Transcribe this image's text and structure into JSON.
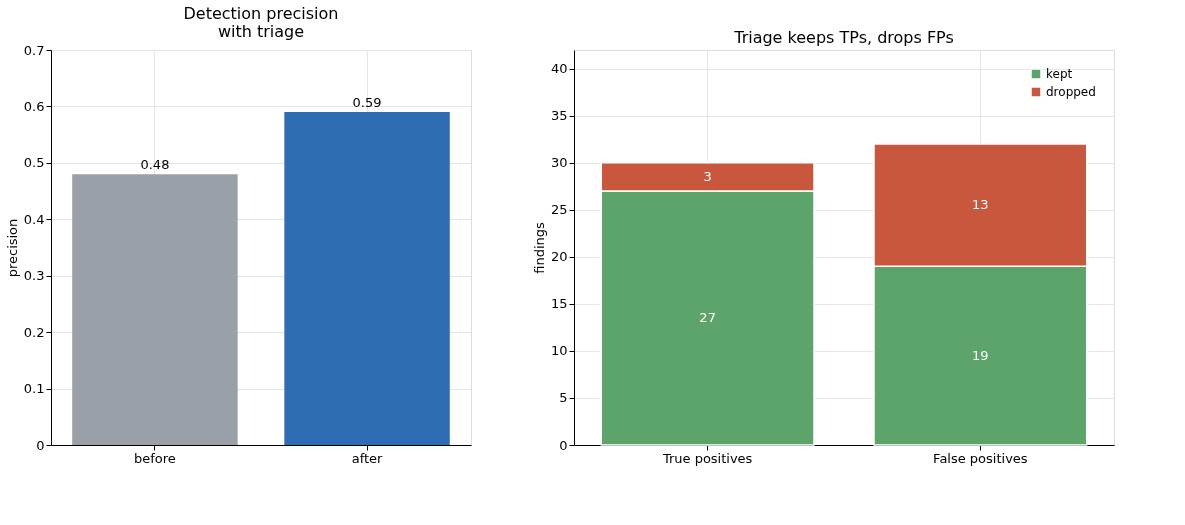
{
  "chart_data": [
    {
      "type": "bar",
      "title": "Detection precision\nwith triage",
      "ylabel": "precision",
      "categories": [
        "before",
        "after"
      ],
      "values": [
        0.48,
        0.59
      ],
      "colors": [
        "#99a0a8",
        "#2e6db4"
      ],
      "ylim": [
        0,
        0.7
      ],
      "yticks": [
        0.0,
        0.1,
        0.2,
        0.3,
        0.4,
        0.5,
        0.6,
        0.7
      ],
      "grid": true,
      "data_labels": true
    },
    {
      "type": "bar",
      "title": "Triage keeps TPs, drops FPs",
      "ylabel": "findings",
      "categories": [
        "True positives",
        "False positives"
      ],
      "stacked": true,
      "series": [
        {
          "name": "kept",
          "color": "#5da46a",
          "values": [
            27,
            19
          ]
        },
        {
          "name": "dropped",
          "color": "#c9573e",
          "values": [
            3,
            13
          ]
        }
      ],
      "ylim": [
        0,
        42
      ],
      "yticks": [
        0,
        5,
        10,
        15,
        20,
        25,
        30,
        35,
        40
      ],
      "grid": true,
      "legend": "top right",
      "data_labels": true
    }
  ]
}
